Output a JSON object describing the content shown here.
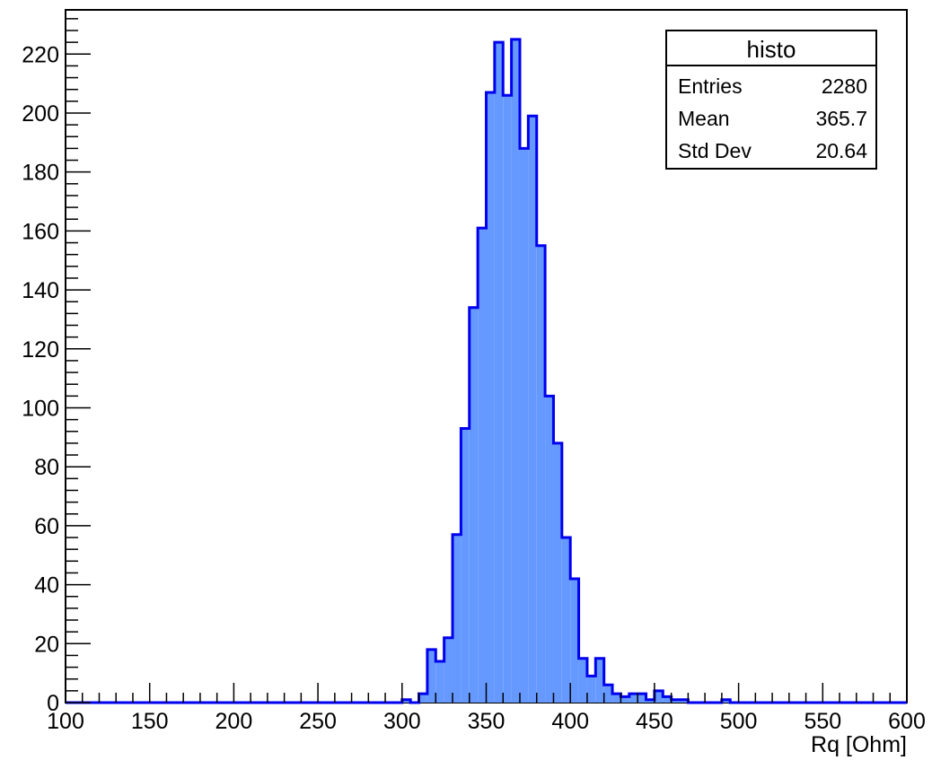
{
  "chart_data": {
    "type": "histogram",
    "title": "",
    "xlabel": "Rq [Ohm]",
    "ylabel": "",
    "xlim": [
      100,
      600
    ],
    "ylim": [
      0,
      235
    ],
    "x_major_ticks": [
      100,
      150,
      200,
      250,
      300,
      350,
      400,
      450,
      500,
      550,
      600
    ],
    "x_tick_labels": [
      "100",
      "150",
      "200",
      "250",
      "300",
      "350",
      "400",
      "450",
      "500",
      "550",
      "600"
    ],
    "y_major_ticks": [
      0,
      20,
      40,
      60,
      80,
      100,
      120,
      140,
      160,
      180,
      200,
      220
    ],
    "y_tick_labels": [
      "0",
      "20",
      "40",
      "60",
      "80",
      "100",
      "120",
      "140",
      "160",
      "180",
      "200",
      "220"
    ],
    "grid": false,
    "legend": "top-right",
    "colors": {
      "fill": "#6699ff",
      "line": "#0000ee",
      "axis": "#000000"
    },
    "series": [
      {
        "name": "histo",
        "bin_edges": [
          100,
          105,
          110,
          115,
          120,
          125,
          130,
          135,
          140,
          145,
          150,
          155,
          160,
          165,
          170,
          175,
          180,
          185,
          190,
          195,
          200,
          205,
          210,
          215,
          220,
          225,
          230,
          235,
          240,
          245,
          250,
          255,
          260,
          265,
          270,
          275,
          280,
          285,
          290,
          295,
          300,
          305,
          310,
          315,
          320,
          325,
          330,
          335,
          340,
          345,
          350,
          355,
          360,
          365,
          370,
          375,
          380,
          385,
          390,
          395,
          400,
          405,
          410,
          415,
          420,
          425,
          430,
          435,
          440,
          445,
          450,
          455,
          460,
          465,
          470,
          475,
          480,
          485,
          490,
          495,
          500,
          505,
          510,
          515,
          520,
          525,
          530,
          535,
          540,
          545,
          550,
          555,
          560,
          565,
          570,
          575,
          580,
          585,
          590,
          595,
          600
        ],
        "counts": [
          0,
          0,
          0,
          0,
          0,
          0,
          0,
          0,
          0,
          0,
          0,
          0,
          0,
          0,
          0,
          0,
          0,
          0,
          0,
          0,
          0,
          0,
          0,
          0,
          0,
          0,
          0,
          0,
          0,
          0,
          0,
          0,
          0,
          0,
          0,
          0,
          0,
          0,
          0,
          0,
          1,
          0,
          3,
          18,
          14,
          22,
          57,
          93,
          134,
          161,
          207,
          224,
          206,
          225,
          188,
          199,
          155,
          104,
          88,
          56,
          42,
          15,
          9,
          15,
          6,
          3,
          2,
          3,
          3,
          1,
          4,
          2,
          1,
          1,
          0,
          0,
          0,
          0,
          1,
          0,
          0,
          0,
          0,
          0,
          0,
          0,
          0,
          0,
          0,
          0,
          0,
          0,
          0,
          0,
          0,
          0,
          0,
          0,
          0,
          0
        ]
      }
    ]
  },
  "stats_box": {
    "title": "histo",
    "rows": [
      {
        "label": "Entries",
        "value": "2280"
      },
      {
        "label": "Mean",
        "value": "365.7"
      },
      {
        "label": "Std Dev",
        "value": "20.64"
      }
    ]
  }
}
